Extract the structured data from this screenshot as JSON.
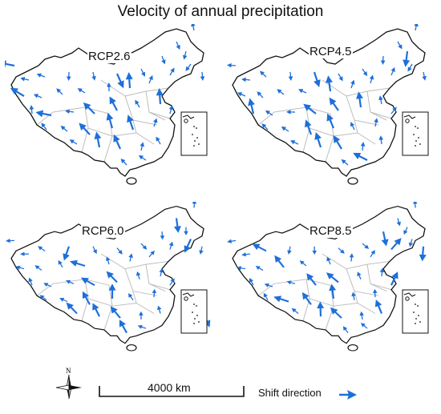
{
  "title": "Velocity of annual precipitation",
  "panels": [
    {
      "label": "RCP2.6"
    },
    {
      "label": "RCP4.5"
    },
    {
      "label": "RCP6.0"
    },
    {
      "label": "RCP8.5"
    }
  ],
  "scale_bar": {
    "label": "4000 km"
  },
  "compass": {
    "north_label": "N"
  },
  "legend": {
    "label": "Shift direction",
    "arrow_color": "#1e6fd9"
  },
  "colors": {
    "arrow": "#1e6fd9",
    "border": "#111111",
    "province": "#bdbdbd"
  }
}
